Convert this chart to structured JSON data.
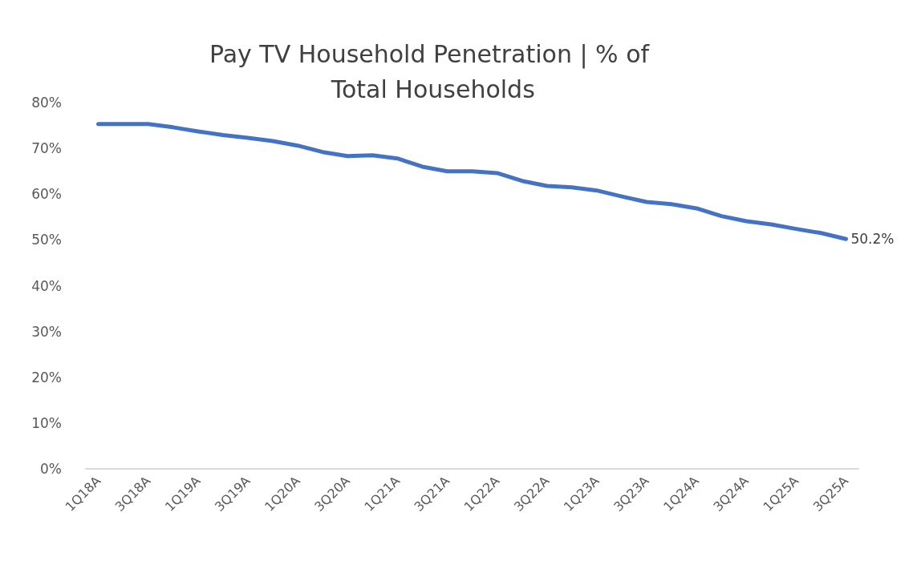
{
  "chart_data": {
    "type": "line",
    "title": "Pay TV Household Penetration | % of Total Households",
    "categories": [
      "1Q18A",
      null,
      "3Q18A",
      null,
      "1Q19A",
      null,
      "3Q19A",
      null,
      "1Q20A",
      null,
      "3Q20A",
      null,
      "1Q21A",
      null,
      "3Q21A",
      null,
      "1Q22A",
      null,
      "3Q22A",
      null,
      "1Q23A",
      null,
      "3Q23A",
      null,
      "1Q24A",
      null,
      "3Q24A",
      null,
      "1Q25A",
      null,
      "3Q25A"
    ],
    "series": [
      {
        "color": "#4472c4",
        "values": [
          75.3,
          75.3,
          75.3,
          74.6,
          73.7,
          72.9,
          72.3,
          71.6,
          70.6,
          69.2,
          68.3,
          68.5,
          67.8,
          66.0,
          65.0,
          65.0,
          64.6,
          62.9,
          61.8,
          61.5,
          60.8,
          59.5,
          58.3,
          57.8,
          56.9,
          55.2,
          54.1,
          53.4,
          52.4,
          51.5,
          50.2
        ],
        "value_labels": [
          null,
          null,
          null,
          null,
          null,
          null,
          null,
          null,
          null,
          null,
          null,
          null,
          null,
          null,
          null,
          null,
          null,
          null,
          null,
          null,
          null,
          null,
          null,
          null,
          null,
          null,
          null,
          null,
          null,
          null,
          "50.2%"
        ]
      }
    ],
    "ylim": [
      0,
      80
    ],
    "yticks": [
      {
        "value": 0,
        "label": "0%"
      },
      {
        "value": 10,
        "label": "10%"
      },
      {
        "value": 20,
        "label": "20%"
      },
      {
        "value": 30,
        "label": "30%"
      },
      {
        "value": 40,
        "label": "40%"
      },
      {
        "value": 50,
        "label": "50%"
      },
      {
        "value": 60,
        "label": "60%"
      },
      {
        "value": 70,
        "label": "70%"
      },
      {
        "value": 80,
        "label": "80%"
      }
    ],
    "grid": false,
    "marker": "none",
    "line_style": "solid"
  }
}
